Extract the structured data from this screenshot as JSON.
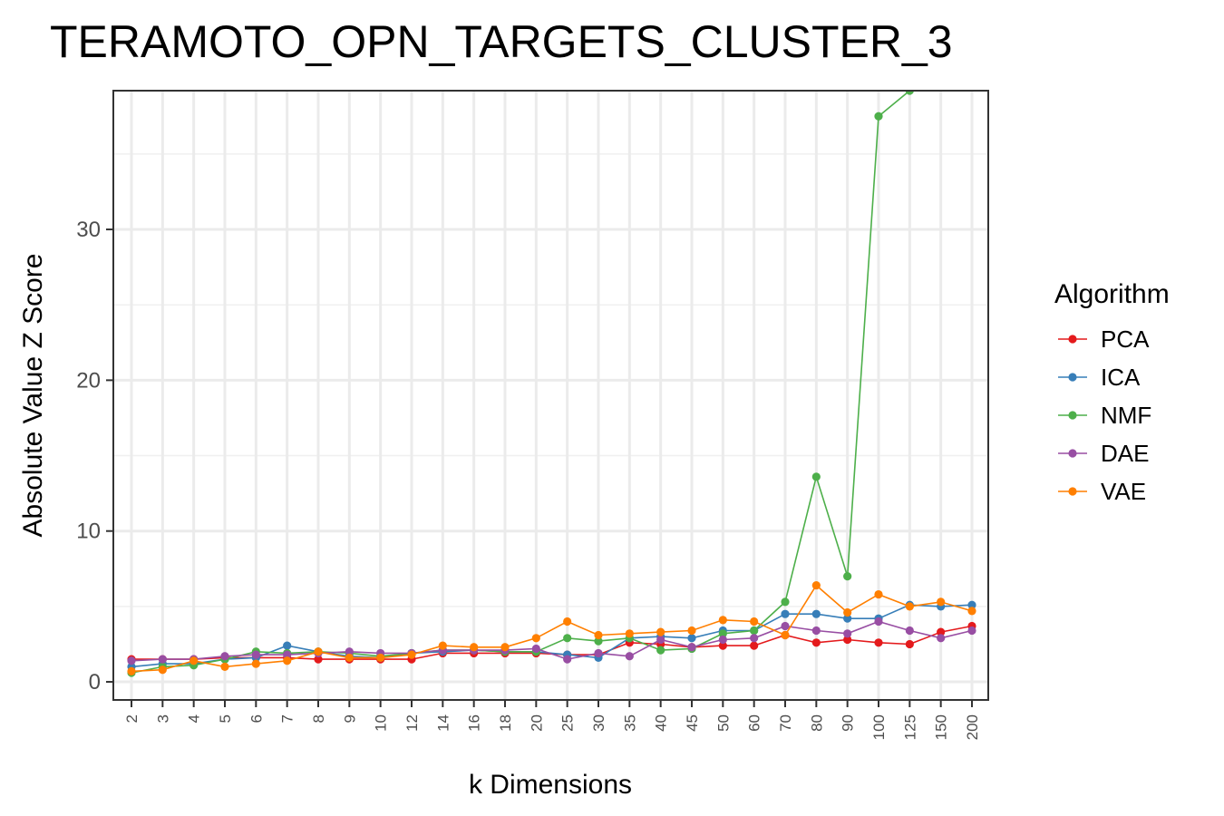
{
  "chart_data": {
    "type": "line",
    "title": "TERAMOTO_OPN_TARGETS_CLUSTER_3",
    "xlabel": "k Dimensions",
    "ylabel": "Absolute Value Z Score",
    "categories": [
      "2",
      "3",
      "4",
      "5",
      "6",
      "7",
      "8",
      "9",
      "10",
      "12",
      "14",
      "16",
      "18",
      "20",
      "25",
      "30",
      "35",
      "40",
      "45",
      "50",
      "60",
      "70",
      "80",
      "90",
      "100",
      "125",
      "150",
      "200"
    ],
    "ylim": [
      -1.2,
      39.2
    ],
    "yticks": [
      0,
      10,
      20,
      30
    ],
    "grid": true,
    "legend": {
      "title": "Algorithm",
      "position": "right"
    },
    "series": [
      {
        "name": "PCA",
        "color": "#E41A1C",
        "values": [
          1.5,
          1.5,
          1.5,
          1.6,
          1.6,
          1.6,
          1.5,
          1.5,
          1.5,
          1.5,
          1.9,
          1.9,
          1.9,
          1.9,
          1.8,
          1.8,
          2.6,
          2.5,
          2.3,
          2.4,
          2.4,
          3.1,
          2.6,
          2.8,
          2.6,
          2.5,
          3.3,
          3.7
        ]
      },
      {
        "name": "ICA",
        "color": "#377EB8",
        "values": [
          1.0,
          1.2,
          1.2,
          1.5,
          1.6,
          2.4,
          2.0,
          1.7,
          1.6,
          1.9,
          2.0,
          2.1,
          2.0,
          2.0,
          1.8,
          1.6,
          2.9,
          3.0,
          2.9,
          3.4,
          3.4,
          4.5,
          4.5,
          4.2,
          4.2,
          5.1,
          5.0,
          5.1
        ]
      },
      {
        "name": "NMF",
        "color": "#4DAF4A",
        "values": [
          0.6,
          1.0,
          1.1,
          1.5,
          2.0,
          1.9,
          2.0,
          1.9,
          1.7,
          1.9,
          2.1,
          2.1,
          2.0,
          2.0,
          2.9,
          2.7,
          2.9,
          2.1,
          2.2,
          3.2,
          3.4,
          5.3,
          13.6,
          7.0,
          37.5,
          39.2,
          null,
          null
        ]
      },
      {
        "name": "DAE",
        "color": "#984EA3",
        "values": [
          1.4,
          1.5,
          1.5,
          1.7,
          1.8,
          1.8,
          1.9,
          2.0,
          1.9,
          1.9,
          2.1,
          2.1,
          2.1,
          2.2,
          1.5,
          1.9,
          1.7,
          2.8,
          2.3,
          2.8,
          2.9,
          3.7,
          3.4,
          3.2,
          4.0,
          3.4,
          2.9,
          3.4
        ]
      },
      {
        "name": "VAE",
        "color": "#FF7F00",
        "values": [
          0.7,
          0.8,
          1.4,
          1.0,
          1.2,
          1.4,
          2.0,
          1.6,
          1.6,
          1.8,
          2.4,
          2.3,
          2.3,
          2.9,
          4.0,
          3.1,
          3.2,
          3.3,
          3.4,
          4.1,
          4.0,
          3.1,
          6.4,
          4.6,
          5.8,
          5.0,
          5.3,
          4.7
        ]
      }
    ]
  }
}
